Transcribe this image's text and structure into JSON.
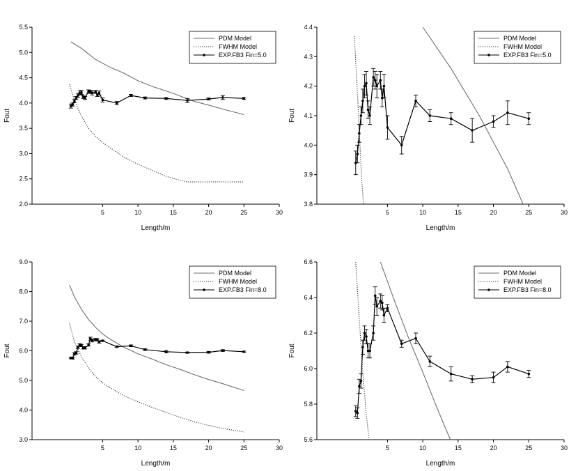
{
  "chart_data": [
    {
      "type": "line",
      "panel": "top-left",
      "xlabel": "Length/m",
      "ylabel": "Fout",
      "xlim": [
        -5,
        30
      ],
      "ylim": [
        2.0,
        5.5
      ],
      "xticks": [
        5,
        10,
        15,
        20,
        25,
        30
      ],
      "xtick_labels": [
        "5",
        "10",
        "15",
        "20",
        "25",
        "30"
      ],
      "yticks": [
        2.0,
        2.5,
        3.0,
        3.5,
        4.0,
        4.5,
        5.0,
        5.5
      ],
      "ytick_labels": [
        "2.0",
        "2.5",
        "3.0",
        "3.5",
        "4.0",
        "4.5",
        "5.0",
        "5.5"
      ],
      "legend_position": "top-right",
      "series": [
        {
          "name": "PDM Model",
          "style": "solid",
          "color": "#6e6e6e",
          "x": [
            0.5,
            2,
            4,
            6,
            8,
            10,
            12,
            15,
            18,
            20,
            22,
            25
          ],
          "y": [
            5.21,
            5.08,
            4.86,
            4.71,
            4.59,
            4.44,
            4.33,
            4.19,
            4.03,
            3.96,
            3.88,
            3.77
          ]
        },
        {
          "name": "FWHM Model",
          "style": "dotted",
          "color": "#333333",
          "x": [
            0.3,
            1,
            2,
            3,
            4,
            5,
            6,
            8,
            10,
            12,
            14,
            16,
            17,
            20,
            25
          ],
          "y": [
            4.37,
            4.05,
            3.74,
            3.5,
            3.34,
            3.22,
            3.12,
            2.93,
            2.79,
            2.67,
            2.55,
            2.47,
            2.44,
            2.44,
            2.44
          ]
        },
        {
          "name": "EXP.FB3 Fin=5.0",
          "style": "solid-marker",
          "color": "#000000",
          "x": [
            0.5,
            0.75,
            1.0,
            1.25,
            1.5,
            1.75,
            2.0,
            2.25,
            2.5,
            3.0,
            3.25,
            3.5,
            4.0,
            4.25,
            4.5,
            5.0,
            7.0,
            9.0,
            11.0,
            14.0,
            17.0,
            20.0,
            22.0,
            25.0
          ],
          "y": [
            3.94,
            3.97,
            4.04,
            4.1,
            4.15,
            4.2,
            4.21,
            4.12,
            4.1,
            4.23,
            4.22,
            4.2,
            4.22,
            4.16,
            4.2,
            4.06,
            4.0,
            4.15,
            4.1,
            4.09,
            4.05,
            4.08,
            4.11,
            4.09
          ],
          "err": [
            0.04,
            0.03,
            0.03,
            0.03,
            0.04,
            0.04,
            0.04,
            0.03,
            0.03,
            0.03,
            0.03,
            0.04,
            0.03,
            0.03,
            0.04,
            0.04,
            0.03,
            0.02,
            0.02,
            0.02,
            0.04,
            0.02,
            0.04,
            0.02
          ]
        }
      ],
      "legend_labels": [
        "PDM Model",
        "FWHM Model",
        "EXP.FB3 Fin=5.0"
      ]
    },
    {
      "type": "line",
      "panel": "top-right",
      "xlabel": "Length/m",
      "ylabel": "Fout",
      "xlim": [
        -5,
        30
      ],
      "ylim": [
        3.8,
        4.4
      ],
      "xticks": [
        5,
        10,
        15,
        20,
        25,
        30
      ],
      "xtick_labels": [
        "5",
        "10",
        "15",
        "20",
        "25",
        "30"
      ],
      "yticks": [
        3.8,
        3.9,
        4.0,
        4.1,
        4.2,
        4.3,
        4.4
      ],
      "ytick_labels": [
        "3.8",
        "3.9",
        "4.0",
        "4.1",
        "4.2",
        "4.3",
        "4.4"
      ],
      "legend_position": "top-right",
      "series": [
        {
          "name": "PDM Model",
          "style": "solid",
          "color": "#6e6e6e",
          "x": [
            10,
            14,
            18,
            22,
            24.2
          ],
          "y": [
            4.4,
            4.26,
            4.1,
            3.92,
            3.8
          ]
        },
        {
          "name": "FWHM Model",
          "style": "dotted",
          "color": "#333333",
          "x": [
            0.3,
            0.7,
            1.0,
            1.3,
            1.6
          ],
          "y": [
            4.37,
            4.2,
            4.05,
            3.9,
            3.8
          ]
        },
        {
          "name": "EXP.FB3 Fin=5.0",
          "style": "solid-marker",
          "color": "#000000",
          "x": [
            0.5,
            0.75,
            1.0,
            1.25,
            1.5,
            1.75,
            2.0,
            2.25,
            2.5,
            3.0,
            3.25,
            3.5,
            4.0,
            4.25,
            4.5,
            5.0,
            7.0,
            9.0,
            11.0,
            14.0,
            17.0,
            20.0,
            22.0,
            25.0
          ],
          "y": [
            3.94,
            3.97,
            4.04,
            4.1,
            4.15,
            4.2,
            4.21,
            4.12,
            4.1,
            4.23,
            4.22,
            4.2,
            4.22,
            4.16,
            4.2,
            4.06,
            4.0,
            4.15,
            4.1,
            4.09,
            4.05,
            4.08,
            4.11,
            4.09
          ],
          "err": [
            0.04,
            0.03,
            0.03,
            0.03,
            0.04,
            0.04,
            0.04,
            0.03,
            0.03,
            0.03,
            0.03,
            0.04,
            0.03,
            0.03,
            0.04,
            0.04,
            0.03,
            0.02,
            0.02,
            0.02,
            0.04,
            0.02,
            0.04,
            0.02
          ]
        }
      ],
      "legend_labels": [
        "PDM Model",
        "FWHM Model",
        "EXP.FB3 Fin=5.0"
      ]
    },
    {
      "type": "line",
      "panel": "bottom-left",
      "xlabel": "Length/m",
      "ylabel": "Fout",
      "xlim": [
        -5,
        30
      ],
      "ylim": [
        3.0,
        9.0
      ],
      "xticks": [
        5,
        10,
        15,
        20,
        25,
        30
      ],
      "xtick_labels": [
        "5",
        "10",
        "15",
        "20",
        "25",
        "30"
      ],
      "yticks": [
        3.0,
        4.0,
        5.0,
        6.0,
        7.0,
        8.0,
        9.0
      ],
      "ytick_labels": [
        "3.0",
        "4.0",
        "5.0",
        "6.0",
        "7.0",
        "8.0",
        "9.0"
      ],
      "legend_position": "top-right",
      "series": [
        {
          "name": "PDM Model",
          "style": "solid",
          "color": "#6e6e6e",
          "x": [
            0.3,
            1,
            2,
            3,
            4,
            5,
            6,
            8,
            10,
            12,
            14,
            16,
            18,
            20,
            22,
            25
          ],
          "y": [
            8.22,
            7.82,
            7.4,
            7.06,
            6.79,
            6.57,
            6.4,
            6.12,
            5.9,
            5.72,
            5.53,
            5.37,
            5.19,
            5.03,
            4.89,
            4.66
          ]
        },
        {
          "name": "FWHM Model",
          "style": "dotted",
          "color": "#333333",
          "x": [
            0.3,
            1,
            2,
            3,
            4,
            5,
            6,
            8,
            10,
            12,
            14,
            16,
            18,
            20,
            22,
            25
          ],
          "y": [
            6.92,
            6.3,
            5.8,
            5.42,
            5.13,
            4.92,
            4.76,
            4.48,
            4.28,
            4.09,
            3.92,
            3.75,
            3.6,
            3.48,
            3.38,
            3.26
          ]
        },
        {
          "name": "EXP.FB3 Fin=8.0",
          "style": "solid-marker",
          "color": "#000000",
          "x": [
            0.5,
            0.75,
            1.0,
            1.25,
            1.5,
            1.75,
            2.0,
            2.25,
            2.5,
            3.0,
            3.25,
            3.5,
            4.0,
            4.25,
            4.5,
            5.0,
            7.0,
            9.0,
            11.0,
            14.0,
            17.0,
            20.0,
            22.0,
            25.0
          ],
          "y": [
            5.76,
            5.75,
            5.9,
            5.93,
            6.12,
            6.2,
            6.18,
            6.1,
            6.1,
            6.2,
            6.41,
            6.35,
            6.38,
            6.37,
            6.3,
            6.34,
            6.14,
            6.17,
            6.04,
            5.97,
            5.94,
            5.95,
            6.01,
            5.97
          ],
          "err": [
            0.03,
            0.03,
            0.04,
            0.04,
            0.04,
            0.04,
            0.04,
            0.04,
            0.04,
            0.04,
            0.05,
            0.05,
            0.04,
            0.04,
            0.04,
            0.02,
            0.02,
            0.03,
            0.03,
            0.04,
            0.02,
            0.03,
            0.03,
            0.02
          ]
        }
      ],
      "legend_labels": [
        "PDM Model",
        "FWHM Model",
        "EXP.FB3 Fin=8.0"
      ]
    },
    {
      "type": "line",
      "panel": "bottom-right",
      "xlabel": "Length/m",
      "ylabel": "Fout",
      "xlim": [
        -5,
        30
      ],
      "ylim": [
        5.6,
        6.6
      ],
      "xticks": [
        5,
        10,
        15,
        20,
        25,
        30
      ],
      "xtick_labels": [
        "5",
        "10",
        "15",
        "20",
        "25",
        "30"
      ],
      "yticks": [
        5.6,
        5.8,
        6.0,
        6.2,
        6.4,
        6.6
      ],
      "ytick_labels": [
        "5.6",
        "5.8",
        "6.0",
        "6.2",
        "6.4",
        "6.6"
      ],
      "legend_position": "top-right",
      "series": [
        {
          "name": "PDM Model",
          "style": "solid",
          "color": "#6e6e6e",
          "x": [
            4.0,
            6,
            8,
            10,
            12,
            13.9
          ],
          "y": [
            6.6,
            6.38,
            6.17,
            5.98,
            5.78,
            5.6
          ]
        },
        {
          "name": "FWHM Model",
          "style": "dotted",
          "color": "#333333",
          "x": [
            0.5,
            1.0,
            1.5,
            2.0,
            2.4
          ],
          "y": [
            6.6,
            6.28,
            5.98,
            5.74,
            5.6
          ]
        },
        {
          "name": "EXP.FB3 Fin=8.0",
          "style": "solid-marker",
          "color": "#000000",
          "x": [
            0.5,
            0.75,
            1.0,
            1.25,
            1.5,
            1.75,
            2.0,
            2.25,
            2.5,
            3.0,
            3.25,
            3.5,
            4.0,
            4.25,
            4.5,
            5.0,
            7.0,
            9.0,
            11.0,
            14.0,
            17.0,
            20.0,
            22.0,
            25.0
          ],
          "y": [
            5.76,
            5.75,
            5.9,
            5.93,
            6.12,
            6.2,
            6.18,
            6.1,
            6.1,
            6.2,
            6.41,
            6.35,
            6.38,
            6.37,
            6.3,
            6.34,
            6.14,
            6.17,
            6.04,
            5.97,
            5.94,
            5.95,
            6.01,
            5.97
          ],
          "err": [
            0.03,
            0.03,
            0.04,
            0.04,
            0.04,
            0.04,
            0.04,
            0.04,
            0.04,
            0.04,
            0.05,
            0.05,
            0.04,
            0.04,
            0.04,
            0.02,
            0.02,
            0.03,
            0.03,
            0.04,
            0.02,
            0.03,
            0.03,
            0.02
          ]
        }
      ],
      "legend_labels": [
        "PDM Model",
        "FWHM Model",
        "EXP.FB3 Fin=8.0"
      ]
    }
  ]
}
